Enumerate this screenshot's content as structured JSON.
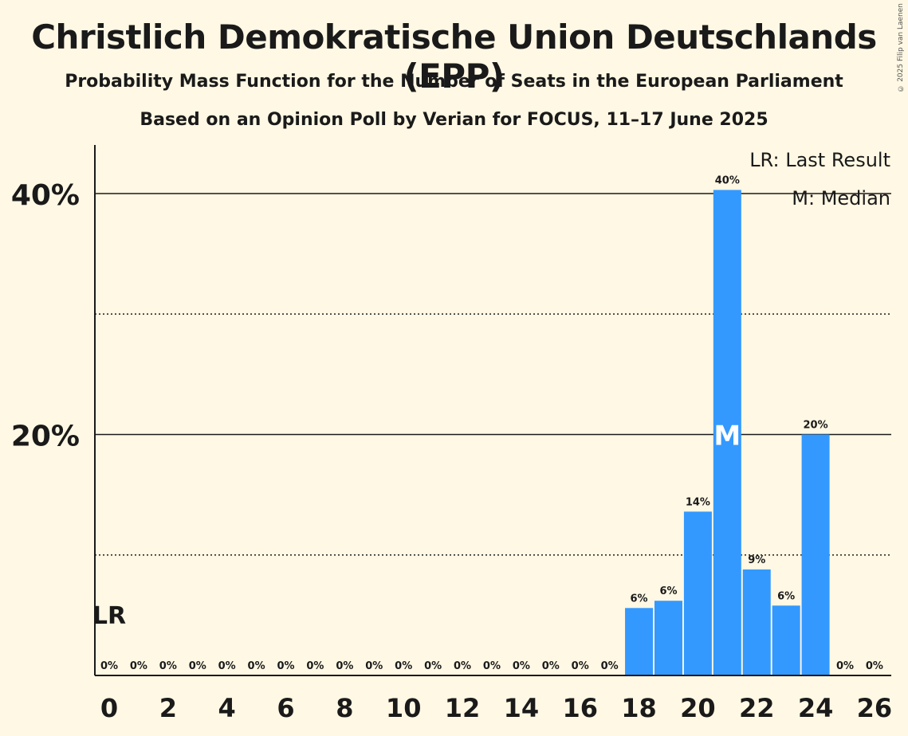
{
  "chart_data": {
    "type": "bar",
    "title": "Christlich Demokratische Union Deutschlands (EPP)",
    "subtitle": "Probability Mass Function for the Number of Seats in the European Parliament",
    "subtitle2": "Based on an Opinion Poll by Verian for FOCUS, 11–17 June 2025",
    "categories": [
      0,
      1,
      2,
      3,
      4,
      5,
      6,
      7,
      8,
      9,
      10,
      11,
      12,
      13,
      14,
      15,
      16,
      17,
      18,
      19,
      20,
      21,
      22,
      23,
      24,
      25,
      26
    ],
    "x_tick_labels": [
      "0",
      "2",
      "4",
      "6",
      "8",
      "10",
      "12",
      "14",
      "16",
      "18",
      "20",
      "22",
      "24",
      "26"
    ],
    "values": [
      0,
      0,
      0,
      0,
      0,
      0,
      0,
      0,
      0,
      0,
      0,
      0,
      0,
      0,
      0,
      0,
      0,
      0,
      5.6,
      6.2,
      13.6,
      40.3,
      8.8,
      5.8,
      20.0,
      0,
      0
    ],
    "data_labels": [
      "0%",
      "0%",
      "0%",
      "0%",
      "0%",
      "0%",
      "0%",
      "0%",
      "0%",
      "0%",
      "0%",
      "0%",
      "0%",
      "0%",
      "0%",
      "0%",
      "0%",
      "0%",
      "6%",
      "6%",
      "14%",
      "40%",
      "9%",
      "6%",
      "20%",
      "0%",
      "0%"
    ],
    "y_tick_labels": [
      "20%",
      "40%"
    ],
    "ylim": [
      0,
      44
    ],
    "median": 21,
    "median_label": "M",
    "last_result": 0,
    "last_result_label": "LR",
    "legend": [
      "LR: Last Result",
      "M: Median"
    ],
    "legend_position": "top-right",
    "bar_color": "#3399ff",
    "gridlines": "solid at 20% and 40%, dotted at 10% and 30%"
  },
  "copyright": "© 2025 Filip van Laenen"
}
